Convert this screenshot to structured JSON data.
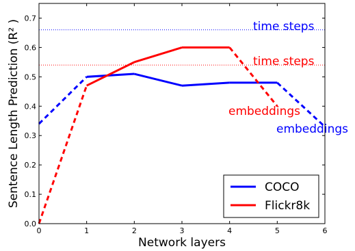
{
  "chart_data": {
    "type": "line",
    "xlabel": "Network layers",
    "ylabel": "Sentence Length Prediction (R² )",
    "xlim": [
      0,
      6
    ],
    "ylim": [
      0,
      0.75
    ],
    "xticks": [
      "0",
      "1",
      "2",
      "3",
      "4",
      "5",
      "6"
    ],
    "yticks": [
      "0.0",
      "0.1",
      "0.2",
      "0.3",
      "0.4",
      "0.5",
      "0.6",
      "0.7"
    ],
    "grid": false,
    "legend_placement": "bottom-right",
    "series": [
      {
        "name": "COCO",
        "color": "#0000ff",
        "x": [
          0,
          1,
          2,
          3,
          4,
          5,
          6
        ],
        "y": [
          0.34,
          0.5,
          0.51,
          0.47,
          0.48,
          0.48,
          0.33
        ],
        "dashed_segments": [
          [
            0,
            1
          ],
          [
            5,
            6
          ]
        ]
      },
      {
        "name": "Flickr8k",
        "color": "#ff0000",
        "x": [
          0,
          1,
          2,
          3,
          4,
          5
        ],
        "y": [
          0.0,
          0.47,
          0.55,
          0.6,
          0.6,
          0.4
        ],
        "dashed_segments": [
          [
            0,
            1
          ],
          [
            4,
            5
          ]
        ]
      }
    ],
    "reference_lines": [
      {
        "label": "time steps",
        "y": 0.66,
        "color": "#0000ff"
      },
      {
        "label": "time steps",
        "y": 0.54,
        "color": "#ff0000"
      }
    ],
    "annotations": [
      {
        "text": "time steps",
        "color": "#0000ff"
      },
      {
        "text": "time steps",
        "color": "#ff0000"
      },
      {
        "text": "embeddings",
        "color": "#ff0000"
      },
      {
        "text": "embeddings",
        "color": "#0000ff"
      }
    ]
  }
}
